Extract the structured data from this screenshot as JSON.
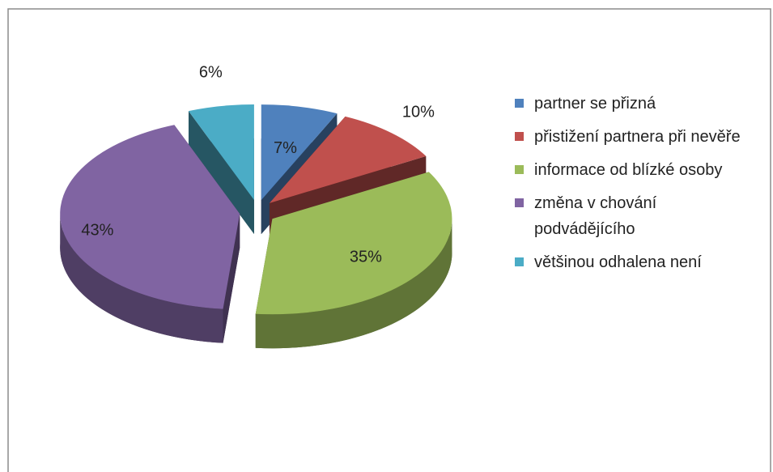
{
  "chart_data": {
    "type": "pie",
    "categories": [
      "partner se přizná",
      "přistižení partnera při nevěře",
      "informace od blízké osoby",
      "změna v chování podvádějícího",
      "většinou odhalena není"
    ],
    "values": [
      7,
      10,
      35,
      43,
      6
    ],
    "value_labels": [
      "7%",
      "10%",
      "35%",
      "43%",
      "6%"
    ],
    "colors": [
      "#4f81bd",
      "#c0504d",
      "#9bbb59",
      "#8064a2",
      "#4bacc6"
    ],
    "legend": "right"
  }
}
